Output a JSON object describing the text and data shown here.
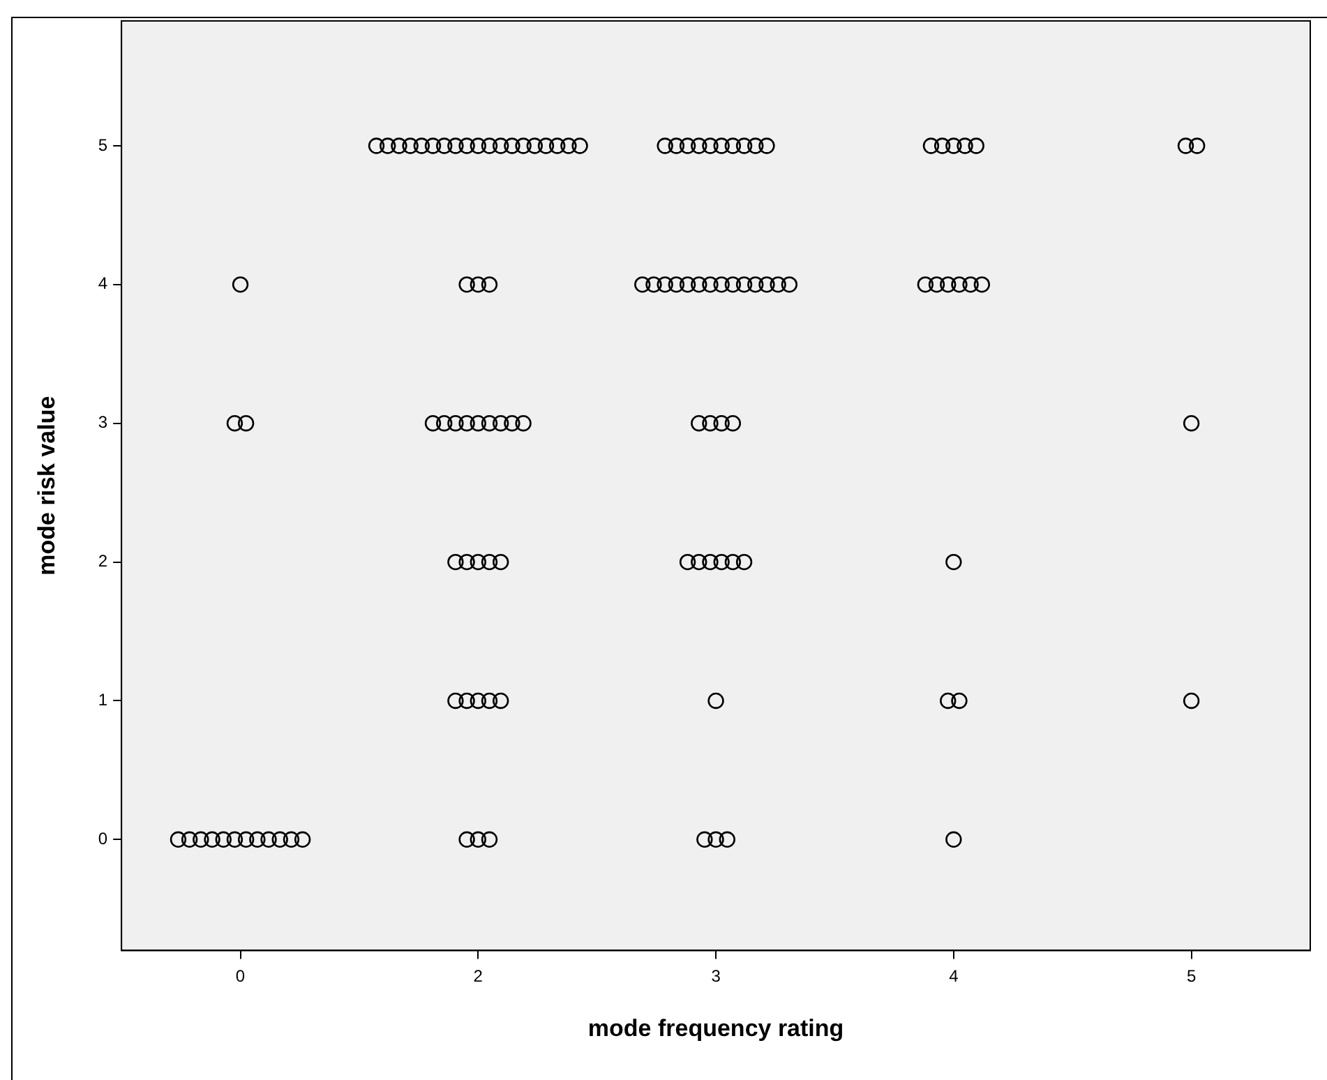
{
  "chart_data": {
    "type": "scatter",
    "xlabel": "mode frequency rating",
    "ylabel": "mode risk value",
    "categories": [
      "0",
      "2",
      "3",
      "4",
      "5"
    ],
    "series": [
      {
        "x": [
          "2",
          "2",
          "2",
          "2",
          "2",
          "2",
          "2",
          "2",
          "2",
          "2",
          "2",
          "2",
          "2",
          "2",
          "2",
          "2",
          "2",
          "2",
          "2",
          "3",
          "3",
          "3",
          "3",
          "3",
          "3",
          "3",
          "3",
          "3",
          "3",
          "4",
          "4",
          "4",
          "4",
          "4",
          "5",
          "5",
          "0",
          "2",
          "2",
          "2",
          "3",
          "3",
          "3",
          "3",
          "3",
          "3",
          "3",
          "3",
          "3",
          "3",
          "3",
          "3",
          "3",
          "3",
          "4",
          "4",
          "4",
          "4",
          "4",
          "4",
          "0",
          "0",
          "2",
          "2",
          "2",
          "2",
          "2",
          "2",
          "2",
          "2",
          "2",
          "3",
          "3",
          "3",
          "3",
          "5",
          "2",
          "2",
          "2",
          "2",
          "2",
          "3",
          "3",
          "3",
          "3",
          "3",
          "3",
          "4",
          "2",
          "2",
          "2",
          "2",
          "2",
          "3",
          "4",
          "4",
          "5",
          "0",
          "0",
          "0",
          "0",
          "0",
          "0",
          "0",
          "0",
          "0",
          "0",
          "0",
          "0",
          "2",
          "2",
          "2",
          "3",
          "3",
          "3",
          "4"
        ],
        "values": [
          5,
          5,
          5,
          5,
          5,
          5,
          5,
          5,
          5,
          5,
          5,
          5,
          5,
          5,
          5,
          5,
          5,
          5,
          5,
          5,
          5,
          5,
          5,
          5,
          5,
          5,
          5,
          5,
          5,
          5,
          5,
          5,
          5,
          5,
          5,
          5,
          4,
          4,
          4,
          4,
          4,
          4,
          4,
          4,
          4,
          4,
          4,
          4,
          4,
          4,
          4,
          4,
          4,
          4,
          4,
          4,
          4,
          4,
          4,
          4,
          3,
          3,
          3,
          3,
          3,
          3,
          3,
          3,
          3,
          3,
          3,
          3,
          3,
          3,
          3,
          3,
          2,
          2,
          2,
          2,
          2,
          2,
          2,
          2,
          2,
          2,
          2,
          2,
          1,
          1,
          1,
          1,
          1,
          1,
          1,
          1,
          1,
          0,
          0,
          0,
          0,
          0,
          0,
          0,
          0,
          0,
          0,
          0,
          0,
          0,
          0,
          0,
          0,
          0,
          0,
          0
        ],
        "color": "#000000"
      }
    ],
    "marker": "circle",
    "ylim": [
      -0.8,
      5.9
    ],
    "yticks": [
      0,
      1,
      2,
      3,
      4,
      5
    ],
    "grid": false
  }
}
